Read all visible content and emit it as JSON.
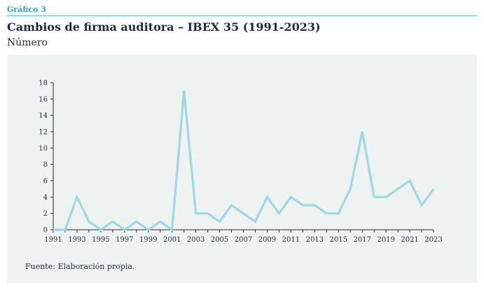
{
  "header": {
    "tag": "Gráfico 3",
    "title": "Cambios de firma auditora – IBEX 35 (1991-2023)",
    "subtitle": "Número"
  },
  "footer": {
    "source": "Fuente: Elaboración propia."
  },
  "colors": {
    "line": "#9fd8de",
    "accent": "#2aa7bd",
    "panel": "#eef2f1",
    "text": "#1d2b3a"
  },
  "chart_data": {
    "type": "line",
    "x": [
      1991,
      1992,
      1993,
      1994,
      1995,
      1996,
      1997,
      1998,
      1999,
      2000,
      2001,
      2002,
      2003,
      2004,
      2005,
      2006,
      2007,
      2008,
      2009,
      2010,
      2011,
      2012,
      2013,
      2014,
      2015,
      2016,
      2017,
      2018,
      2019,
      2020,
      2021,
      2022,
      2023
    ],
    "series": [
      {
        "values": [
          0,
          0,
          4,
          1,
          0,
          1,
          0,
          1,
          0,
          1,
          0,
          17,
          2,
          2,
          1,
          3,
          2,
          1,
          4,
          2,
          4,
          3,
          3,
          2,
          2,
          5,
          12,
          4,
          4,
          5,
          6,
          3,
          5
        ]
      }
    ],
    "xticks": [
      "1991",
      "1993",
      "1995",
      "1997",
      "1999",
      "2001",
      "2003",
      "2005",
      "2007",
      "2009",
      "2011",
      "2013",
      "2015",
      "2017",
      "2019",
      "2021",
      "2023"
    ],
    "yticks": [
      "0",
      "2",
      "4",
      "6",
      "8",
      "10",
      "12",
      "14",
      "16",
      "18"
    ],
    "xlim": [
      1991,
      2023
    ],
    "ylim": [
      0,
      18
    ],
    "grid": false,
    "legend": "none"
  }
}
